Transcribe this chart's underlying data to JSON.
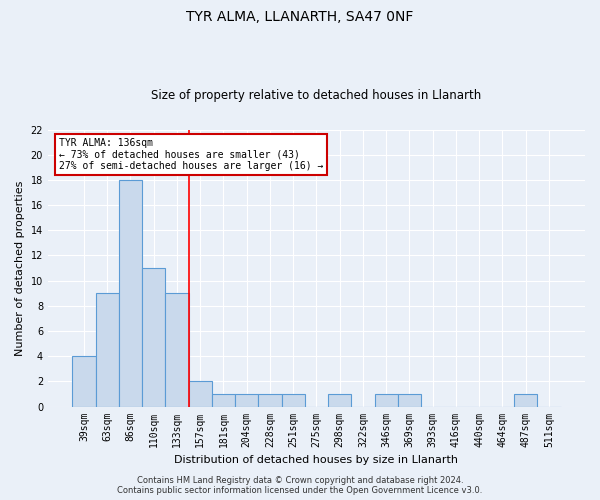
{
  "title": "TYR ALMA, LLANARTH, SA47 0NF",
  "subtitle": "Size of property relative to detached houses in Llanarth",
  "xlabel": "Distribution of detached houses by size in Llanarth",
  "ylabel": "Number of detached properties",
  "categories": [
    "39sqm",
    "63sqm",
    "86sqm",
    "110sqm",
    "133sqm",
    "157sqm",
    "181sqm",
    "204sqm",
    "228sqm",
    "251sqm",
    "275sqm",
    "298sqm",
    "322sqm",
    "346sqm",
    "369sqm",
    "393sqm",
    "416sqm",
    "440sqm",
    "464sqm",
    "487sqm",
    "511sqm"
  ],
  "values": [
    4,
    9,
    18,
    11,
    9,
    2,
    1,
    1,
    1,
    1,
    0,
    1,
    0,
    1,
    1,
    0,
    0,
    0,
    0,
    1,
    0
  ],
  "bar_color": "#c9d9ec",
  "bar_edge_color": "#5b9bd5",
  "bar_linewidth": 0.8,
  "ylim": [
    0,
    22
  ],
  "yticks": [
    0,
    2,
    4,
    6,
    8,
    10,
    12,
    14,
    16,
    18,
    20,
    22
  ],
  "red_line_x": 4.5,
  "annotation_text": "TYR ALMA: 136sqm\n← 73% of detached houses are smaller (43)\n27% of semi-detached houses are larger (16) →",
  "annotation_box_color": "#ffffff",
  "annotation_border_color": "#cc0000",
  "footer_text": "Contains HM Land Registry data © Crown copyright and database right 2024.\nContains public sector information licensed under the Open Government Licence v3.0.",
  "background_color": "#eaf0f8",
  "grid_color": "#ffffff",
  "title_fontsize": 10,
  "subtitle_fontsize": 8.5,
  "xlabel_fontsize": 8,
  "ylabel_fontsize": 8,
  "tick_fontsize": 7,
  "footer_fontsize": 6
}
